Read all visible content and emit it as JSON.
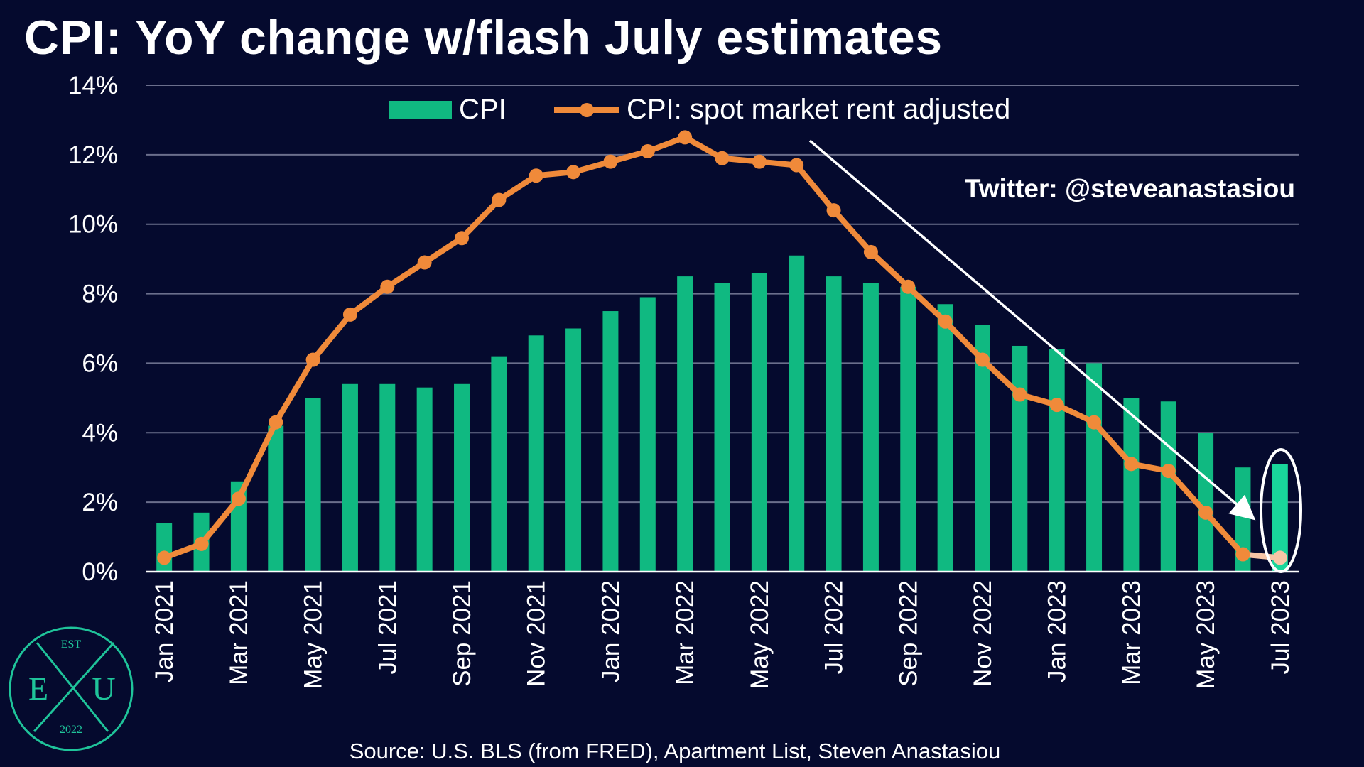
{
  "title": "CPI: YoY change w/flash July estimates",
  "credit": "Twitter: @steveanastasiou",
  "source": "Source: U.S. BLS (from FRED), Apartment List, Steven Anastasiou",
  "logo": {
    "top": "EST",
    "left": "E",
    "center": "X",
    "right": "U",
    "bottom": "2022"
  },
  "colors": {
    "background": "#050a2e",
    "cpi_bar": "#10b981",
    "cpi_bar_last": "#19d69b",
    "spot_line": "#f08a3a",
    "spot_flash": "#f6c5a6",
    "gridline": "#6b6f8c",
    "annotation": "#ffffff",
    "logo": "#1fc49a"
  },
  "chart_data": {
    "type": "bar",
    "title": "CPI: YoY change w/flash July estimates",
    "xlabel": "",
    "ylabel": "",
    "ylim": [
      0,
      14
    ],
    "yticks": [
      "0%",
      "2%",
      "4%",
      "6%",
      "8%",
      "10%",
      "12%",
      "14%"
    ],
    "grid": true,
    "legend": "top-center",
    "categories": [
      "Jan 2021",
      "Feb 2021",
      "Mar 2021",
      "Apr 2021",
      "May 2021",
      "Jun 2021",
      "Jul 2021",
      "Aug 2021",
      "Sep 2021",
      "Oct 2021",
      "Nov 2021",
      "Dec 2021",
      "Jan 2022",
      "Feb 2022",
      "Mar 2022",
      "Apr 2022",
      "May 2022",
      "Jun 2022",
      "Jul 2022",
      "Aug 2022",
      "Sep 2022",
      "Oct 2022",
      "Nov 2022",
      "Dec 2022",
      "Jan 2023",
      "Feb 2023",
      "Mar 2023",
      "Apr 2023",
      "May 2023",
      "Jun 2023",
      "Jul 2023"
    ],
    "xtick_labels": [
      "Jan 2021",
      "Mar 2021",
      "May 2021",
      "Jul 2021",
      "Sep 2021",
      "Nov 2021",
      "Jan 2022",
      "Mar 2022",
      "May 2022",
      "Jul 2022",
      "Sep 2022",
      "Nov 2022",
      "Jan 2023",
      "Mar 2023",
      "May 2023",
      "Jul 2023"
    ],
    "series": [
      {
        "name": "CPI",
        "type": "bar",
        "values": [
          1.4,
          1.7,
          2.6,
          4.2,
          5.0,
          5.4,
          5.4,
          5.3,
          5.4,
          6.2,
          6.8,
          7.0,
          7.5,
          7.9,
          8.5,
          8.3,
          8.6,
          9.1,
          8.5,
          8.3,
          8.2,
          7.7,
          7.1,
          6.5,
          6.4,
          6.0,
          5.0,
          4.9,
          4.0,
          3.0,
          3.1
        ]
      },
      {
        "name": "CPI: spot market rent adjusted",
        "type": "line",
        "values": [
          0.4,
          0.8,
          2.1,
          4.3,
          6.1,
          7.4,
          8.2,
          8.9,
          9.6,
          10.7,
          11.4,
          11.5,
          11.8,
          12.1,
          12.5,
          11.9,
          11.8,
          11.7,
          10.4,
          9.2,
          8.2,
          7.2,
          6.1,
          5.1,
          4.8,
          4.3,
          3.1,
          2.9,
          1.7,
          0.5,
          0.4
        ],
        "flash_last_point": true
      }
    ]
  }
}
